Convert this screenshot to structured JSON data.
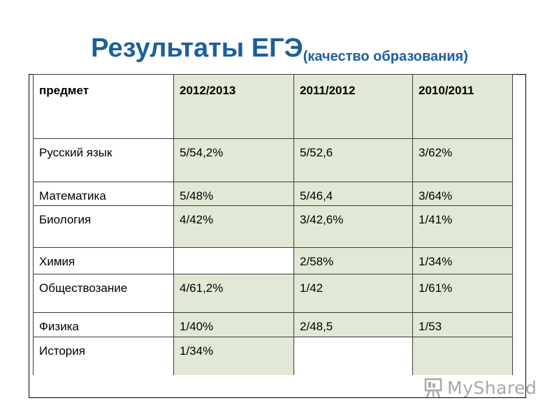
{
  "title": {
    "main": "Результаты ЕГЭ",
    "sub": "(качество образования)"
  },
  "table": {
    "header": [
      "предмет",
      "2012/2013",
      "2011/2012",
      "2010/2011"
    ],
    "rows": [
      [
        "Русский язык",
        "5/54,2%",
        "5/52,6",
        "3/62%"
      ],
      [
        "Математика",
        "5/48%",
        "5/46,4",
        "3/64%"
      ],
      [
        "Биология",
        "4/42%",
        "3/42,6%",
        "1/41%"
      ],
      [
        "Химия",
        "",
        "2/58%",
        "1/34%"
      ],
      [
        "Обществозание",
        "4/61,2%",
        "1/42",
        "1/61%"
      ],
      [
        "Физика",
        "1/40%",
        "2/48,5",
        "1/53"
      ],
      [
        "История",
        "1/34%",
        "",
        ""
      ]
    ]
  },
  "watermark": {
    "text": "MyShared",
    "icon": "myshared-logo-icon"
  },
  "colors": {
    "title": "#1c5f9c",
    "cell_fill": "#e1e9d6",
    "border": "#3a3a3a"
  }
}
